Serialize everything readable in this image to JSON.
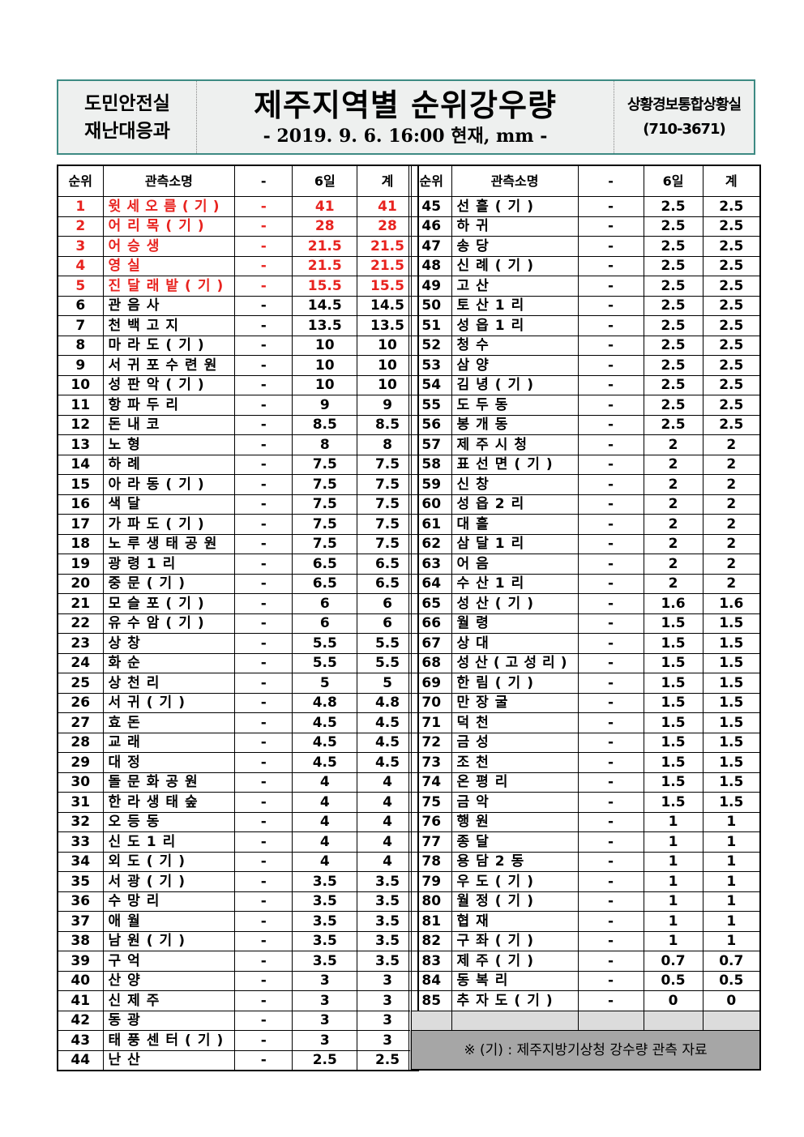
{
  "header": {
    "dept_line1": "도민안전실",
    "dept_line2": "재난대응과",
    "title": "제주지역별 순위강우량",
    "subtitle": "- 2019. 9. 6. 16:00 현재, mm -",
    "office": "상황경보통합상황실",
    "phone": "(710-3671)"
  },
  "columns": [
    "순위",
    "관측소명",
    "-",
    "6일",
    "계"
  ],
  "highlight_color": "#e8231f",
  "rows": [
    [
      "1",
      "윗세오름(기)",
      "-",
      "41",
      "41"
    ],
    [
      "2",
      "어리목(기)",
      "-",
      "28",
      "28"
    ],
    [
      "3",
      "어승생",
      "-",
      "21.5",
      "21.5"
    ],
    [
      "4",
      "영실",
      "-",
      "21.5",
      "21.5"
    ],
    [
      "5",
      "진달래밭(기)",
      "-",
      "15.5",
      "15.5"
    ],
    [
      "6",
      "관음사",
      "-",
      "14.5",
      "14.5"
    ],
    [
      "7",
      "천백고지",
      "-",
      "13.5",
      "13.5"
    ],
    [
      "8",
      "마라도(기)",
      "-",
      "10",
      "10"
    ],
    [
      "9",
      "서귀포수련원",
      "-",
      "10",
      "10"
    ],
    [
      "10",
      "성판악(기)",
      "-",
      "10",
      "10"
    ],
    [
      "11",
      "항파두리",
      "-",
      "9",
      "9"
    ],
    [
      "12",
      "돈내코",
      "-",
      "8.5",
      "8.5"
    ],
    [
      "13",
      "노형",
      "-",
      "8",
      "8"
    ],
    [
      "14",
      "하례",
      "-",
      "7.5",
      "7.5"
    ],
    [
      "15",
      "아라동(기)",
      "-",
      "7.5",
      "7.5"
    ],
    [
      "16",
      "색달",
      "-",
      "7.5",
      "7.5"
    ],
    [
      "17",
      "가파도(기)",
      "-",
      "7.5",
      "7.5"
    ],
    [
      "18",
      "노루생태공원",
      "-",
      "7.5",
      "7.5"
    ],
    [
      "19",
      "광령1리",
      "-",
      "6.5",
      "6.5"
    ],
    [
      "20",
      "중문(기)",
      "-",
      "6.5",
      "6.5"
    ],
    [
      "21",
      "모슬포(기)",
      "-",
      "6",
      "6"
    ],
    [
      "22",
      "유수암(기)",
      "-",
      "6",
      "6"
    ],
    [
      "23",
      "상창",
      "-",
      "5.5",
      "5.5"
    ],
    [
      "24",
      "화순",
      "-",
      "5.5",
      "5.5"
    ],
    [
      "25",
      "상천리",
      "-",
      "5",
      "5"
    ],
    [
      "26",
      "서귀(기)",
      "-",
      "4.8",
      "4.8"
    ],
    [
      "27",
      "효돈",
      "-",
      "4.5",
      "4.5"
    ],
    [
      "28",
      "교래",
      "-",
      "4.5",
      "4.5"
    ],
    [
      "29",
      "대정",
      "-",
      "4.5",
      "4.5"
    ],
    [
      "30",
      "돌문화공원",
      "-",
      "4",
      "4"
    ],
    [
      "31",
      "한라생태숲",
      "-",
      "4",
      "4"
    ],
    [
      "32",
      "오등동",
      "-",
      "4",
      "4"
    ],
    [
      "33",
      "신도1리",
      "-",
      "4",
      "4"
    ],
    [
      "34",
      "외도(기)",
      "-",
      "4",
      "4"
    ],
    [
      "35",
      "서광(기)",
      "-",
      "3.5",
      "3.5"
    ],
    [
      "36",
      "수망리",
      "-",
      "3.5",
      "3.5"
    ],
    [
      "37",
      "애월",
      "-",
      "3.5",
      "3.5"
    ],
    [
      "38",
      "남원(기)",
      "-",
      "3.5",
      "3.5"
    ],
    [
      "39",
      "구억",
      "-",
      "3.5",
      "3.5"
    ],
    [
      "40",
      "산양",
      "-",
      "3",
      "3"
    ],
    [
      "41",
      "신제주",
      "-",
      "3",
      "3"
    ],
    [
      "42",
      "동광",
      "-",
      "3",
      "3"
    ],
    [
      "43",
      "태풍센터(기)",
      "-",
      "3",
      "3"
    ],
    [
      "44",
      "난산",
      "-",
      "2.5",
      "2.5"
    ],
    [
      "45",
      "선흘(기)",
      "-",
      "2.5",
      "2.5"
    ],
    [
      "46",
      "하귀",
      "-",
      "2.5",
      "2.5"
    ],
    [
      "47",
      "송당",
      "-",
      "2.5",
      "2.5"
    ],
    [
      "48",
      "신례(기)",
      "-",
      "2.5",
      "2.5"
    ],
    [
      "49",
      "고산",
      "-",
      "2.5",
      "2.5"
    ],
    [
      "50",
      "토산1리",
      "-",
      "2.5",
      "2.5"
    ],
    [
      "51",
      "성읍1리",
      "-",
      "2.5",
      "2.5"
    ],
    [
      "52",
      "청수",
      "-",
      "2.5",
      "2.5"
    ],
    [
      "53",
      "삼양",
      "-",
      "2.5",
      "2.5"
    ],
    [
      "54",
      "김녕(기)",
      "-",
      "2.5",
      "2.5"
    ],
    [
      "55",
      "도두동",
      "-",
      "2.5",
      "2.5"
    ],
    [
      "56",
      "봉개동",
      "-",
      "2.5",
      "2.5"
    ],
    [
      "57",
      "제주시청",
      "-",
      "2",
      "2"
    ],
    [
      "58",
      "표선면(기)",
      "-",
      "2",
      "2"
    ],
    [
      "59",
      "신창",
      "-",
      "2",
      "2"
    ],
    [
      "60",
      "성읍2리",
      "-",
      "2",
      "2"
    ],
    [
      "61",
      "대흘",
      "-",
      "2",
      "2"
    ],
    [
      "62",
      "삼달1리",
      "-",
      "2",
      "2"
    ],
    [
      "63",
      "어음",
      "-",
      "2",
      "2"
    ],
    [
      "64",
      "수산1리",
      "-",
      "2",
      "2"
    ],
    [
      "65",
      "성산(기)",
      "-",
      "1.6",
      "1.6"
    ],
    [
      "66",
      "월령",
      "-",
      "1.5",
      "1.5"
    ],
    [
      "67",
      "상대",
      "-",
      "1.5",
      "1.5"
    ],
    [
      "68",
      "성산(고성리)",
      "-",
      "1.5",
      "1.5"
    ],
    [
      "69",
      "한림(기)",
      "-",
      "1.5",
      "1.5"
    ],
    [
      "70",
      "만장굴",
      "-",
      "1.5",
      "1.5"
    ],
    [
      "71",
      "덕천",
      "-",
      "1.5",
      "1.5"
    ],
    [
      "72",
      "금성",
      "-",
      "1.5",
      "1.5"
    ],
    [
      "73",
      "조천",
      "-",
      "1.5",
      "1.5"
    ],
    [
      "74",
      "온평리",
      "-",
      "1.5",
      "1.5"
    ],
    [
      "75",
      "금악",
      "-",
      "1.5",
      "1.5"
    ],
    [
      "76",
      "행원",
      "-",
      "1",
      "1"
    ],
    [
      "77",
      "종달",
      "-",
      "1",
      "1"
    ],
    [
      "78",
      "용담2동",
      "-",
      "1",
      "1"
    ],
    [
      "79",
      "우도(기)",
      "-",
      "1",
      "1"
    ],
    [
      "80",
      "월정(기)",
      "-",
      "1",
      "1"
    ],
    [
      "81",
      "협재",
      "-",
      "1",
      "1"
    ],
    [
      "82",
      "구좌(기)",
      "-",
      "1",
      "1"
    ],
    [
      "83",
      "제주(기)",
      "-",
      "0.7",
      "0.7"
    ],
    [
      "84",
      "동복리",
      "-",
      "0.5",
      "0.5"
    ],
    [
      "85",
      "추자도(기)",
      "-",
      "0",
      "0"
    ]
  ],
  "top_highlighted_count": 5,
  "note": "※ (기) : 제주지방기상청 강수량 관측 자료"
}
